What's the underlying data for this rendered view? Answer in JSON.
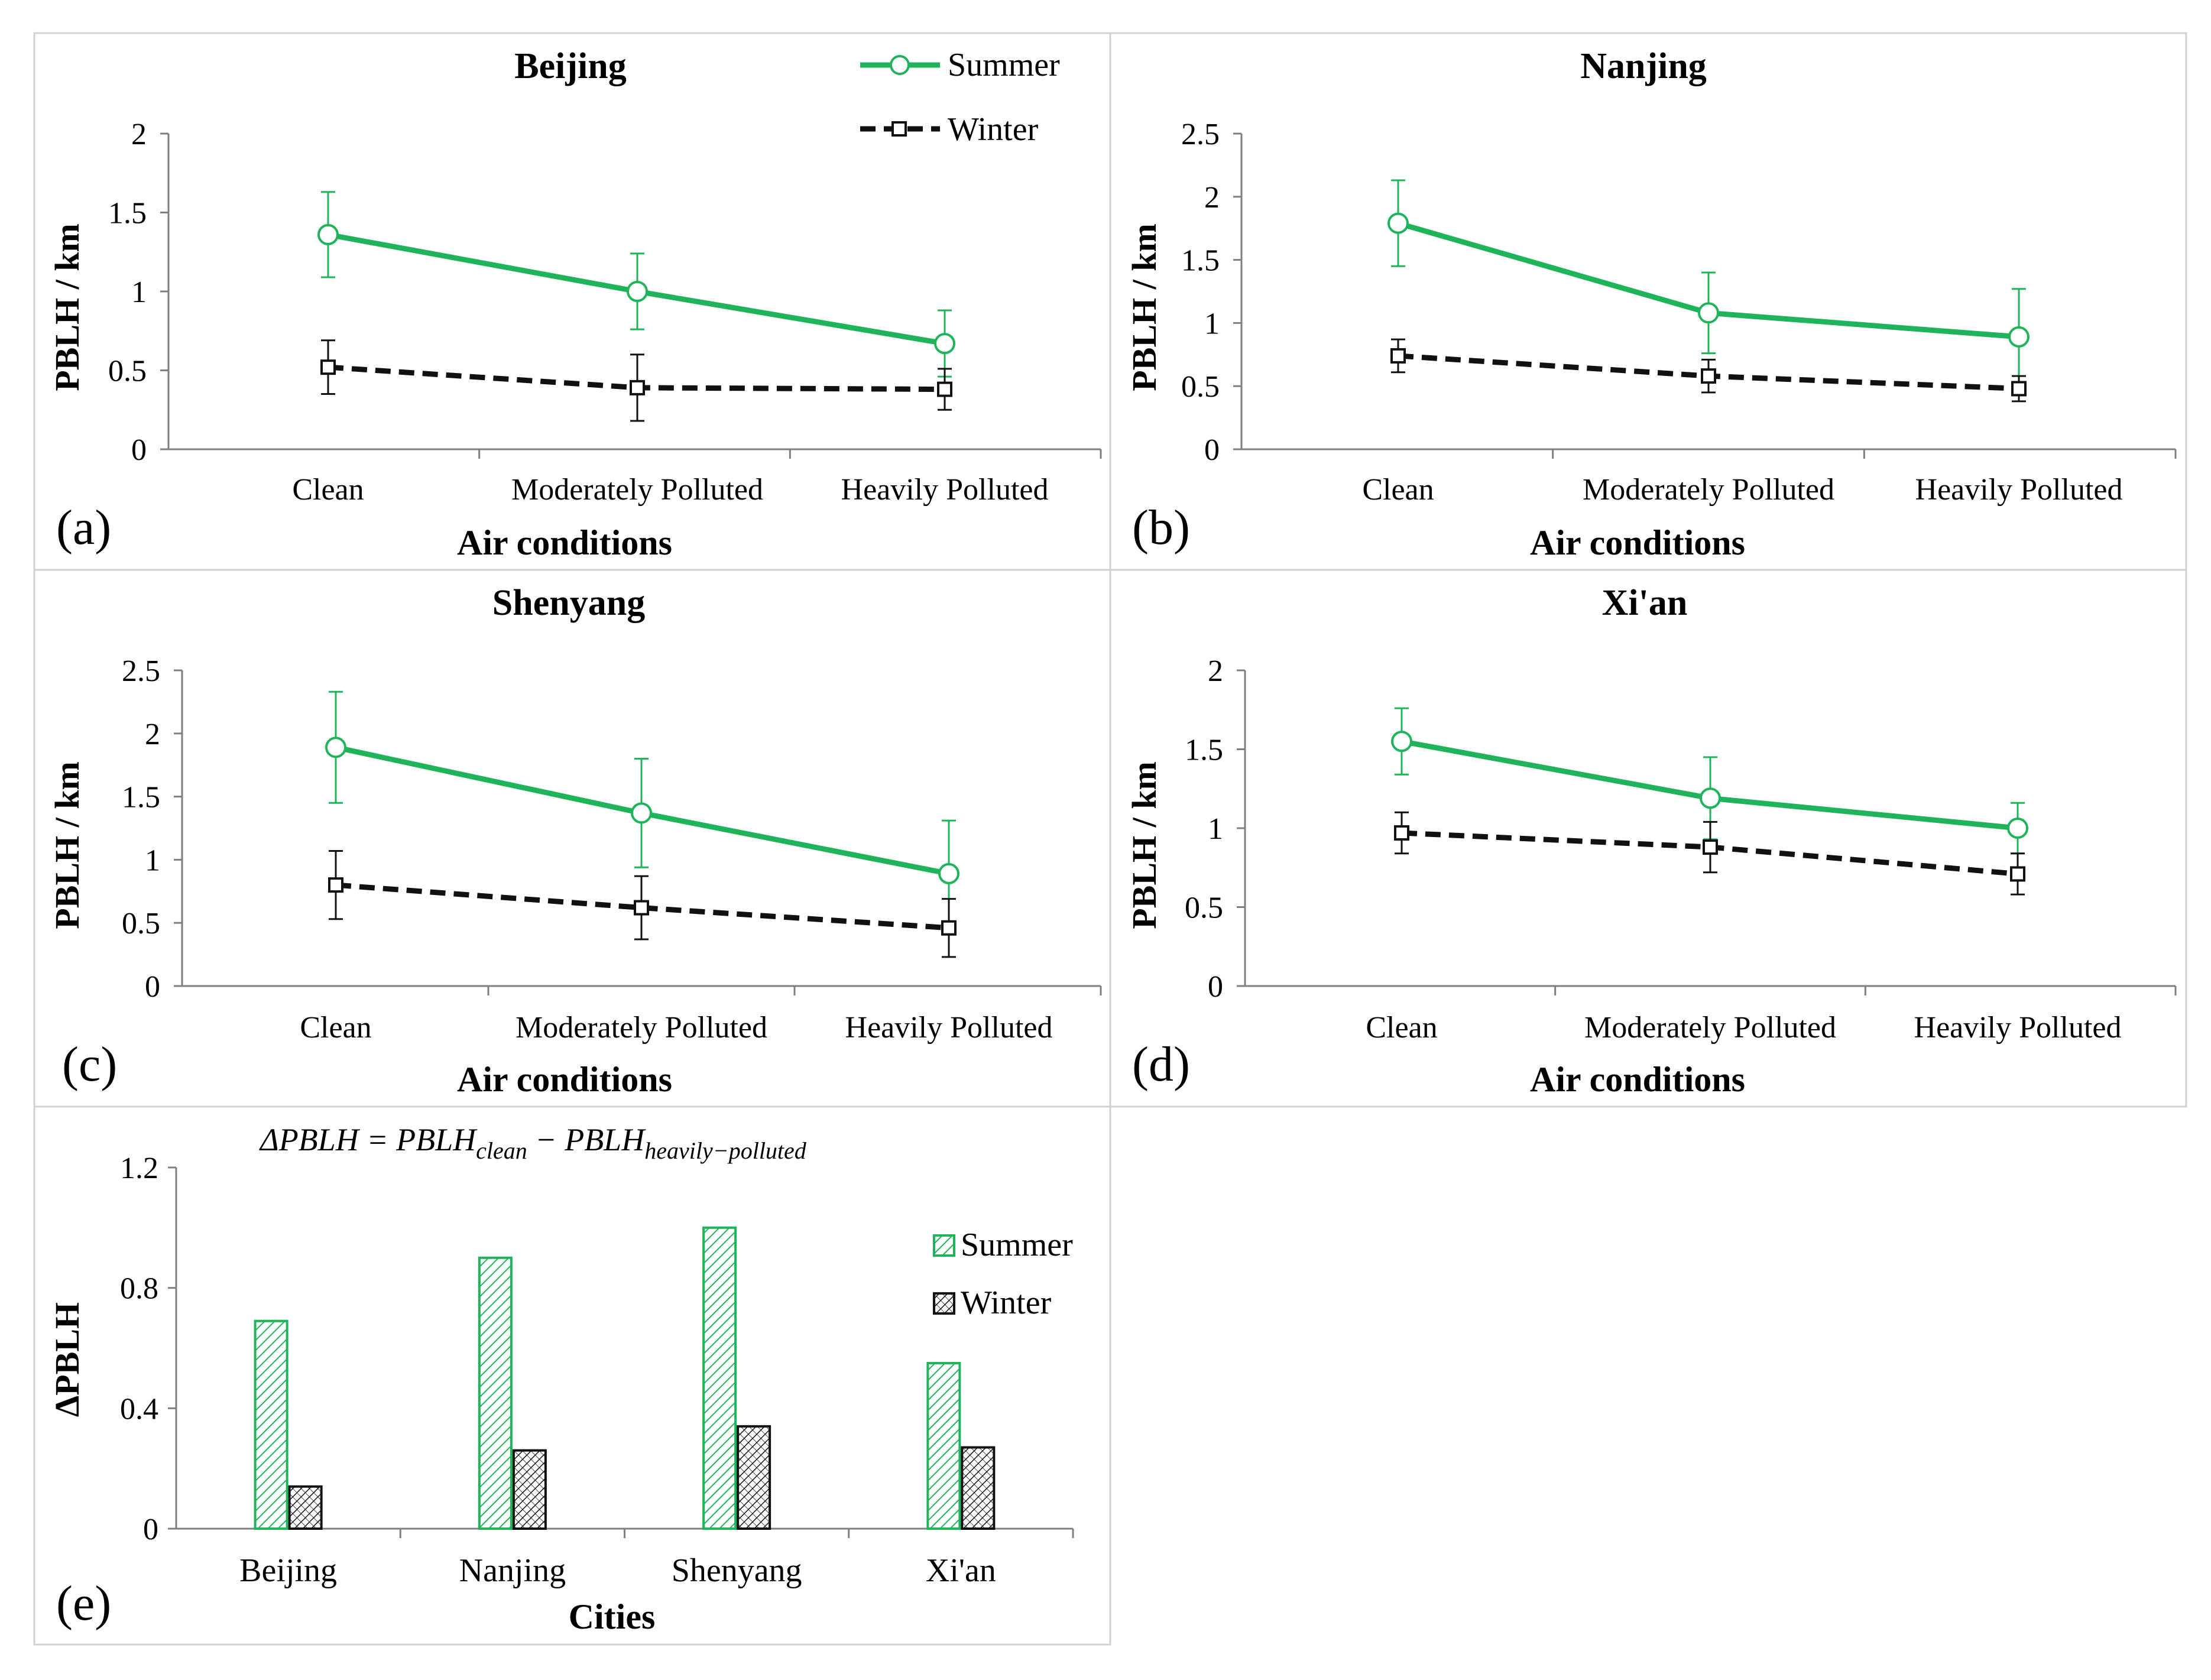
{
  "colors": {
    "summer": "#1fb45a",
    "winter": "#111111",
    "axis": "#7f7f7f",
    "frame": "#d0d0d0"
  },
  "legend_labels": {
    "summer": "Summer",
    "winter": "Winter"
  },
  "chart_data": [
    {
      "id": "a",
      "type": "line",
      "panel_label": "(a)",
      "title": "Beijing",
      "xlabel": "Air conditions",
      "ylabel": "PBLH / km",
      "categories": [
        "Clean",
        "Moderately Polluted",
        "Heavily Polluted"
      ],
      "ylim": [
        0,
        2
      ],
      "yticks": [
        0,
        0.5,
        1,
        1.5,
        2
      ],
      "ytick_labels": [
        "0",
        "0.5",
        "1",
        "1.5",
        "2"
      ],
      "legend": "top-right",
      "series": [
        {
          "name": "Summer",
          "values": [
            1.36,
            1.0,
            0.67
          ],
          "errors": [
            0.27,
            0.24,
            0.21
          ]
        },
        {
          "name": "Winter",
          "values": [
            0.52,
            0.39,
            0.38
          ],
          "errors": [
            0.17,
            0.21,
            0.13
          ]
        }
      ]
    },
    {
      "id": "b",
      "type": "line",
      "panel_label": "(b)",
      "title": "Nanjing",
      "xlabel": "Air conditions",
      "ylabel": "PBLH / km",
      "categories": [
        "Clean",
        "Moderately Polluted",
        "Heavily Polluted"
      ],
      "ylim": [
        0,
        2.5
      ],
      "yticks": [
        0,
        0.5,
        1,
        1.5,
        2,
        2.5
      ],
      "ytick_labels": [
        "0",
        "0.5",
        "1",
        "1.5",
        "2",
        "2.5"
      ],
      "series": [
        {
          "name": "Summer",
          "values": [
            1.79,
            1.08,
            0.89
          ],
          "errors": [
            0.34,
            0.32,
            0.38
          ]
        },
        {
          "name": "Winter",
          "values": [
            0.74,
            0.58,
            0.48
          ],
          "errors": [
            0.13,
            0.13,
            0.1
          ]
        }
      ]
    },
    {
      "id": "c",
      "type": "line",
      "panel_label": "(c)",
      "title": "Shenyang",
      "xlabel": "Air conditions",
      "ylabel": "PBLH / km",
      "categories": [
        "Clean",
        "Moderately Polluted",
        "Heavily Polluted"
      ],
      "ylim": [
        0,
        2.5
      ],
      "yticks": [
        0,
        0.5,
        1,
        1.5,
        2,
        2.5
      ],
      "ytick_labels": [
        "0",
        "0.5",
        "1",
        "1.5",
        "2",
        "2.5"
      ],
      "series": [
        {
          "name": "Summer",
          "values": [
            1.89,
            1.37,
            0.89
          ],
          "errors": [
            0.44,
            0.43,
            0.42
          ]
        },
        {
          "name": "Winter",
          "values": [
            0.8,
            0.62,
            0.46
          ],
          "errors": [
            0.27,
            0.25,
            0.23
          ]
        }
      ]
    },
    {
      "id": "d",
      "type": "line",
      "panel_label": "(d)",
      "title": "Xi'an",
      "xlabel": "Air conditions",
      "ylabel": "PBLH / km",
      "categories": [
        "Clean",
        "Moderately Polluted",
        "Heavily Polluted"
      ],
      "ylim": [
        0,
        2
      ],
      "yticks": [
        0,
        0.5,
        1,
        1.5,
        2
      ],
      "ytick_labels": [
        "0",
        "0.5",
        "1",
        "1.5",
        "2"
      ],
      "series": [
        {
          "name": "Summer",
          "values": [
            1.55,
            1.19,
            1.0
          ],
          "errors": [
            0.21,
            0.26,
            0.16
          ]
        },
        {
          "name": "Winter",
          "values": [
            0.97,
            0.88,
            0.71
          ],
          "errors": [
            0.13,
            0.16,
            0.13
          ]
        }
      ]
    },
    {
      "id": "e",
      "type": "bar",
      "panel_label": "(e)",
      "annotation": "ΔPBLH = PBLH",
      "annotation_sub1": "clean",
      "annotation_minus": " − PBLH",
      "annotation_sub2": "heavily−polluted",
      "xlabel": "Cities",
      "ylabel": "ΔPBLH",
      "categories": [
        "Beijing",
        "Nanjing",
        "Shenyang",
        "Xi'an"
      ],
      "ylim": [
        0,
        1.2
      ],
      "yticks": [
        0,
        0.4,
        0.8,
        1.2
      ],
      "ytick_labels": [
        "0",
        "0.4",
        "0.8",
        "1.2"
      ],
      "legend": "right",
      "series": [
        {
          "name": "Summer",
          "values": [
            0.69,
            0.9,
            1.0,
            0.55
          ]
        },
        {
          "name": "Winter",
          "values": [
            0.14,
            0.26,
            0.34,
            0.27
          ]
        }
      ]
    }
  ]
}
